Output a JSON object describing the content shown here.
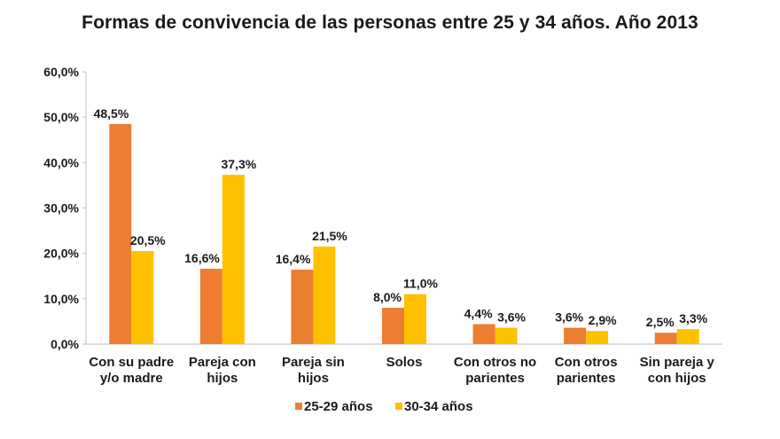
{
  "chart_data": {
    "type": "bar",
    "title": "Formas de convivencia de las personas entre 25 y 34 años. Año 2013",
    "xlabel": "",
    "ylabel": "",
    "ylim": [
      0,
      60
    ],
    "yticks": [
      "0,0%",
      "10,0%",
      "20,0%",
      "30,0%",
      "40,0%",
      "50,0%",
      "60,0%"
    ],
    "ytick_values": [
      0,
      10,
      20,
      30,
      40,
      50,
      60
    ],
    "grid": false,
    "legend_position": "bottom",
    "categories": [
      [
        "Con su padre",
        "y/o madre"
      ],
      [
        "Pareja con",
        "hijos"
      ],
      [
        "Pareja sin",
        "hijos"
      ],
      [
        "Solos"
      ],
      [
        "Con otros no",
        "parientes"
      ],
      [
        "Con otros",
        "parientes"
      ],
      [
        "Sin pareja y",
        "con hijos"
      ]
    ],
    "series": [
      {
        "name": "25-29 años",
        "color": "#ED7D31",
        "values": [
          48.5,
          16.6,
          16.4,
          8.0,
          4.4,
          3.6,
          2.5
        ],
        "labels": [
          "48,5%",
          "16,6%",
          "16,4%",
          "8,0%",
          "4,4%",
          "3,6%",
          "2,5%"
        ]
      },
      {
        "name": "30-34 años",
        "color": "#FFC000",
        "values": [
          20.5,
          37.3,
          21.5,
          11.0,
          3.6,
          2.9,
          3.3
        ],
        "labels": [
          "20,5%",
          "37,3%",
          "21,5%",
          "11,0%",
          "3,6%",
          "2,9%",
          "3,3%"
        ]
      }
    ]
  }
}
